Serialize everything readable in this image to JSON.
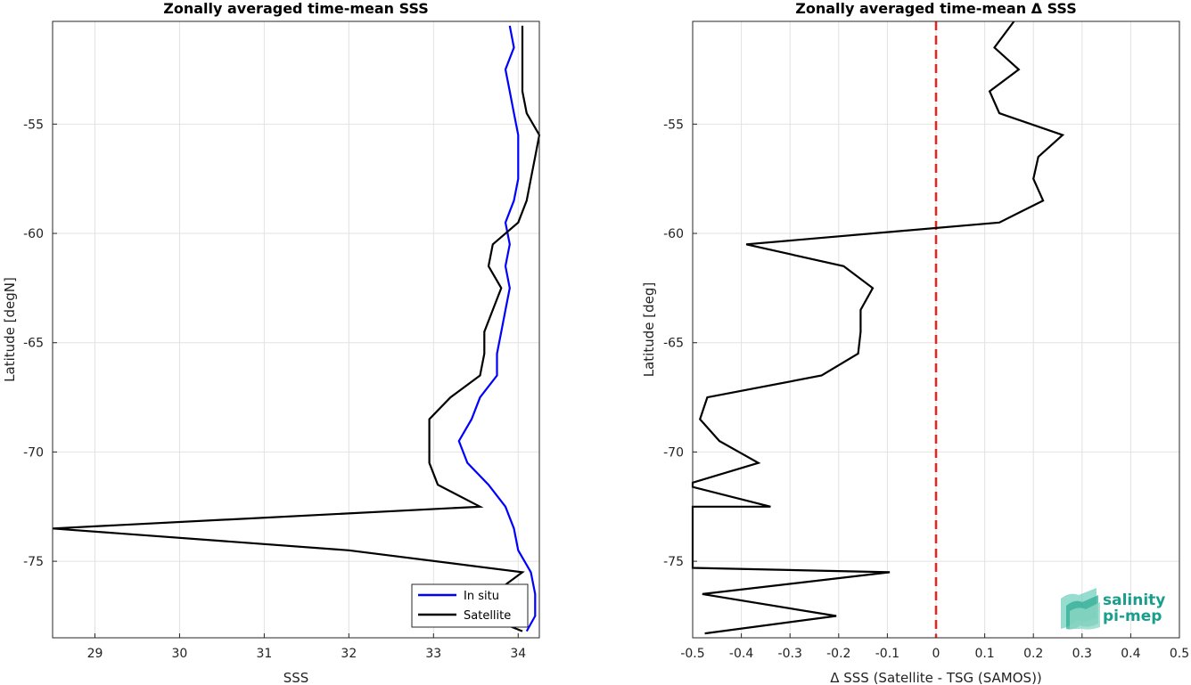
{
  "chart_data": [
    {
      "type": "line",
      "title": "Zonally averaged time-mean SSS",
      "xlabel": "SSS",
      "ylabel": "Latitude [degN]",
      "xlim": [
        28.5,
        34.25
      ],
      "ylim": [
        -78.5,
        -50.3
      ],
      "xticks": [
        29,
        30,
        31,
        32,
        33,
        34
      ],
      "yticks": [
        -55,
        -60,
        -65,
        -70,
        -75
      ],
      "grid": true,
      "legend_position": "bottom-right",
      "series": [
        {
          "name": "In situ",
          "color": "#0000ff",
          "points": [
            [
              33.9,
              -50.5
            ],
            [
              33.95,
              -51.5
            ],
            [
              33.85,
              -52.5
            ],
            [
              33.9,
              -53.5
            ],
            [
              33.95,
              -54.5
            ],
            [
              34.0,
              -55.5
            ],
            [
              34.0,
              -56.5
            ],
            [
              34.0,
              -57.5
            ],
            [
              33.95,
              -58.5
            ],
            [
              33.85,
              -59.5
            ],
            [
              33.9,
              -60.5
            ],
            [
              33.85,
              -61.5
            ],
            [
              33.9,
              -62.5
            ],
            [
              33.85,
              -63.5
            ],
            [
              33.8,
              -64.5
            ],
            [
              33.75,
              -65.5
            ],
            [
              33.75,
              -66.5
            ],
            [
              33.55,
              -67.5
            ],
            [
              33.45,
              -68.5
            ],
            [
              33.3,
              -69.5
            ],
            [
              33.4,
              -70.5
            ],
            [
              33.65,
              -71.5
            ],
            [
              33.85,
              -72.5
            ],
            [
              33.95,
              -73.5
            ],
            [
              34.0,
              -74.5
            ],
            [
              34.15,
              -75.5
            ],
            [
              34.2,
              -76.5
            ],
            [
              34.2,
              -77.5
            ],
            [
              34.1,
              -78.2
            ]
          ]
        },
        {
          "name": "Satellite",
          "color": "#000000",
          "points": [
            [
              34.05,
              -50.5
            ],
            [
              34.05,
              -51.5
            ],
            [
              34.05,
              -52.5
            ],
            [
              34.05,
              -53.5
            ],
            [
              34.1,
              -54.5
            ],
            [
              34.25,
              -55.5
            ],
            [
              34.2,
              -56.5
            ],
            [
              34.15,
              -57.5
            ],
            [
              34.1,
              -58.5
            ],
            [
              34.0,
              -59.5
            ],
            [
              33.7,
              -60.5
            ],
            [
              33.65,
              -61.5
            ],
            [
              33.8,
              -62.5
            ],
            [
              33.7,
              -63.5
            ],
            [
              33.6,
              -64.5
            ],
            [
              33.6,
              -65.5
            ],
            [
              33.55,
              -66.5
            ],
            [
              33.2,
              -67.5
            ],
            [
              32.95,
              -68.5
            ],
            [
              32.95,
              -69.5
            ],
            [
              32.95,
              -70.5
            ],
            [
              33.05,
              -71.5
            ],
            [
              33.55,
              -72.5
            ],
            [
              28.5,
              -73.5
            ],
            [
              32.0,
              -74.5
            ],
            [
              34.05,
              -75.5
            ],
            [
              33.7,
              -76.5
            ],
            [
              33.6,
              -77.5
            ],
            [
              34.05,
              -78.2
            ]
          ]
        }
      ]
    },
    {
      "type": "line",
      "title": "Zonally averaged time-mean Δ SSS",
      "xlabel": "Δ SSS (Satellite - TSG (SAMOS))",
      "ylabel": "Latitude [deg]",
      "xlim": [
        -0.5,
        0.5
      ],
      "ylim": [
        -78.5,
        -50.3
      ],
      "xticks": [
        -0.5,
        -0.4,
        -0.3,
        -0.2,
        -0.1,
        0,
        0.1,
        0.2,
        0.3,
        0.4,
        0.5
      ],
      "yticks": [
        -55,
        -60,
        -65,
        -70,
        -75
      ],
      "grid": true,
      "reference_line": {
        "x": 0,
        "color": "#e8241c",
        "style": "dashed"
      },
      "series": [
        {
          "color": "#000000",
          "points": [
            [
              0.16,
              -50.3
            ],
            [
              0.12,
              -51.5
            ],
            [
              0.17,
              -52.5
            ],
            [
              0.11,
              -53.5
            ],
            [
              0.13,
              -54.5
            ],
            [
              0.26,
              -55.5
            ],
            [
              0.21,
              -56.5
            ],
            [
              0.2,
              -57.5
            ],
            [
              0.22,
              -58.5
            ],
            [
              0.13,
              -59.5
            ],
            [
              -0.39,
              -60.5
            ],
            [
              -0.19,
              -61.5
            ],
            [
              -0.13,
              -62.5
            ],
            [
              -0.155,
              -63.5
            ],
            [
              -0.155,
              -64.5
            ],
            [
              -0.16,
              -65.5
            ],
            [
              -0.235,
              -66.5
            ],
            [
              -0.47,
              -67.5
            ],
            [
              -0.485,
              -68.5
            ],
            [
              -0.445,
              -69.5
            ],
            [
              -0.365,
              -70.5
            ],
            [
              -0.5,
              -71.4
            ],
            [
              -0.5,
              -71.6
            ],
            [
              -0.34,
              -72.5
            ],
            [
              -0.5,
              -72.5
            ],
            [
              -0.5,
              -75.3
            ],
            [
              -0.095,
              -75.5
            ],
            [
              -0.48,
              -76.5
            ],
            [
              -0.205,
              -77.5
            ],
            [
              -0.475,
              -78.3
            ]
          ]
        }
      ]
    }
  ],
  "logo": {
    "line1": "salinity",
    "line2": "pi-mep"
  },
  "colors": {
    "in_situ": "#0000ff",
    "satellite": "#000000",
    "zero_line": "#e8241c",
    "logo": "#1a9e8c"
  }
}
